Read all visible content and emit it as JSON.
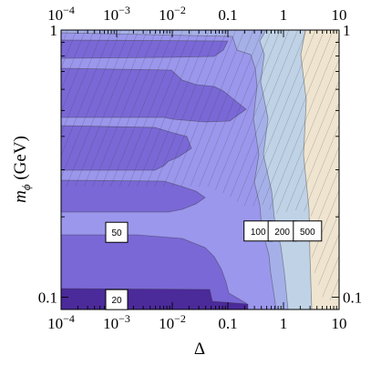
{
  "chart_data": {
    "type": "contour",
    "xlabel": "Δ",
    "ylabel_main": "m",
    "ylabel_sub": "ϕ",
    "ylabel_unit": " (GeV)",
    "x_scale": "log",
    "y_scale": "log",
    "xlim": [
      0.0001,
      10
    ],
    "ylim": [
      0.09,
      1
    ],
    "x_ticks": [
      {
        "value": 0.0001,
        "base": "10",
        "exp": "−4"
      },
      {
        "value": 0.001,
        "base": "10",
        "exp": "−3"
      },
      {
        "value": 0.01,
        "base": "10",
        "exp": "−2"
      },
      {
        "value": 0.1,
        "label": "0.1"
      },
      {
        "value": 1,
        "label": "1"
      },
      {
        "value": 10,
        "label": "10"
      }
    ],
    "y_ticks": [
      {
        "value": 0.1,
        "label": "0.1"
      },
      {
        "value": 1,
        "label": "1"
      }
    ],
    "contour_labels": [
      {
        "text": "50",
        "x": 0.001,
        "y": 0.175
      },
      {
        "text": "20",
        "x": 0.001,
        "y": 0.098
      },
      {
        "text": "100",
        "x": 0.35,
        "y": 0.177
      },
      {
        "text": "200",
        "x": 0.95,
        "y": 0.177
      },
      {
        "text": "500",
        "x": 2.7,
        "y": 0.177
      }
    ],
    "levels": [
      {
        "name": "lt20",
        "color": "#4b2a9a"
      },
      {
        "name": "20-50",
        "color": "#7a68d6"
      },
      {
        "name": "50-100",
        "color": "#9b97ec"
      },
      {
        "name": "100-200",
        "color": "#a6b0e8"
      },
      {
        "name": "200-500",
        "color": "#bfd2e6"
      },
      {
        "name": "gt500",
        "color": "#efe4d0"
      }
    ],
    "hatch_note": "hatched = excluded",
    "grid": false
  }
}
